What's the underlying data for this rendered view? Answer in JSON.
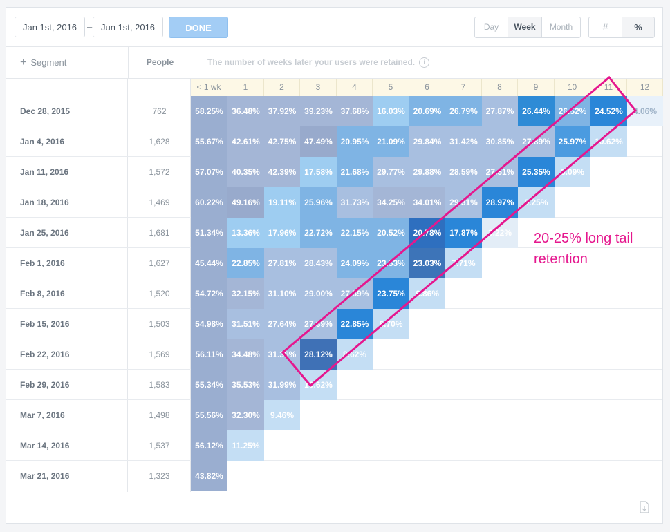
{
  "date_range": {
    "start": "Jan 1st, 2016",
    "separator": "–",
    "end": "Jun 1st, 2016",
    "done_label": "DONE"
  },
  "interval": {
    "options": [
      "Day",
      "Week",
      "Month"
    ],
    "selected": "Week"
  },
  "display_mode": {
    "count_icon": "#",
    "percent_icon": "%",
    "selected": "percent"
  },
  "header": {
    "segment_label": "Segment",
    "add_icon": "+",
    "people_label": "People",
    "note": "The number of weeks later your users were retained.",
    "info_icon": "i"
  },
  "columns": [
    "< 1 wk",
    "1",
    "2",
    "3",
    "4",
    "5",
    "6",
    "7",
    "8",
    "9",
    "10",
    "11",
    "12"
  ],
  "rows": [
    {
      "date": "Dec 28, 2015",
      "people": "762",
      "values": [
        "58.25%",
        "36.48%",
        "37.92%",
        "39.23%",
        "37.68%",
        "16.03%",
        "20.69%",
        "26.79%",
        "27.87%",
        "26.44%",
        "26.52%",
        "24.52%",
        "4.06%"
      ]
    },
    {
      "date": "Jan 4, 2016",
      "people": "1,628",
      "values": [
        "55.67%",
        "42.61%",
        "42.75%",
        "47.49%",
        "20.95%",
        "21.09%",
        "29.84%",
        "31.42%",
        "30.85%",
        "27.89%",
        "25.97%",
        "10.62%"
      ]
    },
    {
      "date": "Jan 11, 2016",
      "people": "1,572",
      "values": [
        "57.07%",
        "40.35%",
        "42.39%",
        "17.58%",
        "21.68%",
        "29.77%",
        "29.88%",
        "28.59%",
        "27.51%",
        "25.35%",
        "8.09%"
      ]
    },
    {
      "date": "Jan 18, 2016",
      "people": "1,469",
      "values": [
        "60.22%",
        "49.16%",
        "19.11%",
        "25.96%",
        "31.73%",
        "34.25%",
        "34.01%",
        "29.31%",
        "28.97%",
        "9.25%"
      ]
    },
    {
      "date": "Jan 25, 2016",
      "people": "1,681",
      "values": [
        "51.34%",
        "13.36%",
        "17.96%",
        "22.72%",
        "22.15%",
        "20.52%",
        "20.78%",
        "17.87%",
        "3.22%"
      ]
    },
    {
      "date": "Feb 1, 2016",
      "people": "1,627",
      "values": [
        "45.44%",
        "22.85%",
        "27.81%",
        "28.43%",
        "24.09%",
        "23.53%",
        "23.03%",
        "7.71%"
      ]
    },
    {
      "date": "Feb 8, 2016",
      "people": "1,520",
      "values": [
        "54.72%",
        "32.15%",
        "31.10%",
        "29.00%",
        "27.59%",
        "23.75%",
        "6.86%"
      ]
    },
    {
      "date": "Feb 15, 2016",
      "people": "1,503",
      "values": [
        "54.98%",
        "31.51%",
        "27.64%",
        "27.39%",
        "22.85%",
        "6.70%"
      ]
    },
    {
      "date": "Feb 22, 2016",
      "people": "1,569",
      "values": [
        "56.11%",
        "34.48%",
        "31.36%",
        "28.12%",
        "8.62%"
      ]
    },
    {
      "date": "Feb 29, 2016",
      "people": "1,583",
      "values": [
        "55.34%",
        "35.53%",
        "31.99%",
        "10.62%"
      ]
    },
    {
      "date": "Mar 7, 2016",
      "people": "1,498",
      "values": [
        "55.56%",
        "32.30%",
        "9.46%"
      ]
    },
    {
      "date": "Mar 14, 2016",
      "people": "1,537",
      "values": [
        "56.12%",
        "11.25%"
      ]
    },
    {
      "date": "Mar 21, 2016",
      "people": "1,323",
      "values": [
        "43.82%"
      ]
    }
  ],
  "annotation": {
    "text_line1": "20-25% long tail",
    "text_line2": "retention",
    "color": "#e5178e"
  },
  "colors": {
    "accent": "#2e8bd6",
    "done_button": "#a3cdf5",
    "column_header_bg": "#fdf8e6"
  },
  "footer": {
    "export_icon": "export-csv-icon"
  }
}
